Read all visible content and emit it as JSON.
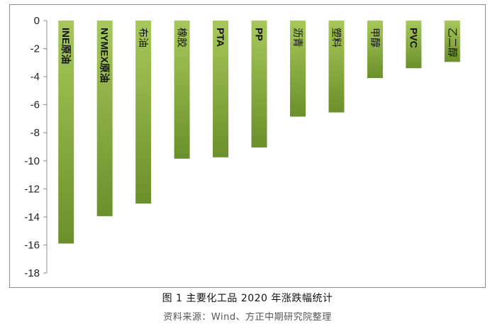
{
  "caption": "图 1 主要化工品 2020 年涨跌幅统计",
  "source": "资料来源：Wind、方正中期研究院整理",
  "chart_data": {
    "type": "bar",
    "orientation": "vertical",
    "categories": [
      "INE原油",
      "NYMEX原油",
      "布油",
      "橡胶",
      "PTA",
      "PP",
      "沥青",
      "塑料",
      "甲醇",
      "PVC",
      "乙二醇"
    ],
    "values": [
      -15.9,
      -13.95,
      -13.05,
      -9.85,
      -9.75,
      -9.05,
      -6.85,
      -6.55,
      -4.1,
      -3.4,
      -2.95
    ],
    "ylim": [
      -18,
      0
    ],
    "yticks": [
      0,
      -2,
      -4,
      -6,
      -8,
      -10,
      -12,
      -14,
      -16,
      -18
    ],
    "category_labels_inside_bars": true,
    "category_label_rotation": "vertical-clockwise",
    "bar_color_top": "#a7c85a",
    "bar_color_bottom": "#6b8f2a",
    "axis_color": "#8c8c8c",
    "grid": false,
    "legend": "none"
  }
}
